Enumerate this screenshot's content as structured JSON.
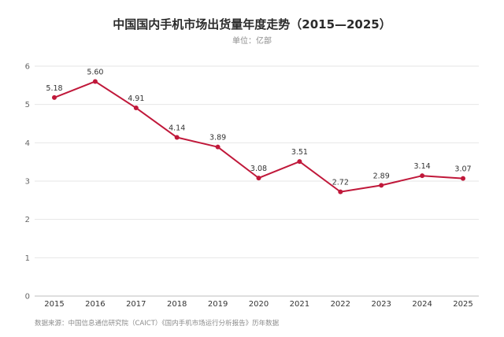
{
  "chart_data": {
    "type": "line",
    "title": "中国国内手机市场出货量年度走势（2015—2025）",
    "subtitle": "单位：亿部",
    "xlabel": "",
    "ylabel": "",
    "x": [
      "2015",
      "2016",
      "2017",
      "2018",
      "2019",
      "2020",
      "2021",
      "2022",
      "2023",
      "2024",
      "2025"
    ],
    "series": [
      {
        "values": [
          5.18,
          5.6,
          4.91,
          4.14,
          3.89,
          3.08,
          3.51,
          2.72,
          2.89,
          3.14,
          3.07
        ],
        "labels": [
          "5.18",
          "5.60",
          "4.91",
          "4.14",
          "3.89",
          "3.08",
          "3.51",
          "2.72",
          "2.89",
          "3.14",
          "3.07"
        ],
        "color": "#c0183a"
      }
    ],
    "ylim": [
      0,
      6
    ],
    "yticks": [
      "0",
      "1",
      "2",
      "3",
      "4",
      "5",
      "6"
    ],
    "grid": true,
    "legend": "none",
    "source": "数据来源：中国信息通信研究院（CAICT）《国内手机市场运行分析报告》历年数据"
  }
}
